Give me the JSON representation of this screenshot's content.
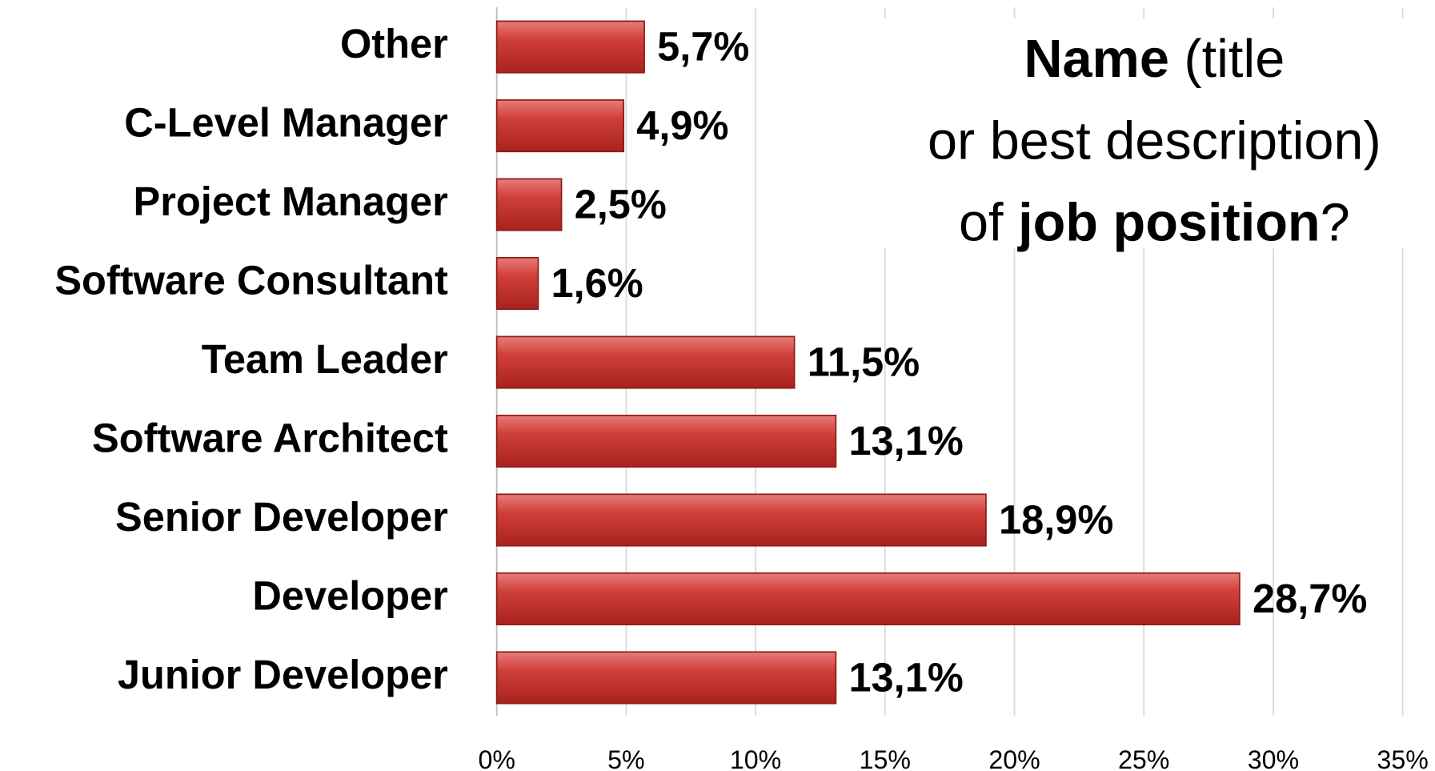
{
  "chart_data": {
    "type": "bar",
    "orientation": "horizontal",
    "title_lines": [
      [
        {
          "text": "Name",
          "bold": true
        },
        {
          "text": " (title",
          "bold": false
        }
      ],
      [
        {
          "text": "or best description)",
          "bold": false
        }
      ],
      [
        {
          "text": "of ",
          "bold": false
        },
        {
          "text": "job position",
          "bold": true
        },
        {
          "text": "?",
          "bold": false
        }
      ]
    ],
    "categories": [
      "Other",
      "C-Level Manager",
      "Project Manager",
      "Software Consultant",
      "Team Leader",
      "Software Architect",
      "Senior Developer",
      "Developer",
      "Junior Developer"
    ],
    "values": [
      5.7,
      4.9,
      2.5,
      1.6,
      11.5,
      13.1,
      18.9,
      28.7,
      13.1
    ],
    "value_labels": [
      "5,7%",
      "4,9%",
      "2,5%",
      "1,6%",
      "11,5%",
      "13,1%",
      "18,9%",
      "28,7%",
      "13,1%"
    ],
    "color": "#c0302c",
    "xlim": [
      0,
      35
    ],
    "xticks": [
      {
        "value": 0,
        "label": "0%"
      },
      {
        "value": 5,
        "label": "5%"
      },
      {
        "value": 10,
        "label": "10%"
      },
      {
        "value": 15,
        "label": "15%"
      },
      {
        "value": 20,
        "label": "20%"
      },
      {
        "value": 25,
        "label": "25%"
      },
      {
        "value": 30,
        "label": "30%"
      },
      {
        "value": 35,
        "label": "35%"
      }
    ],
    "grid": true
  }
}
